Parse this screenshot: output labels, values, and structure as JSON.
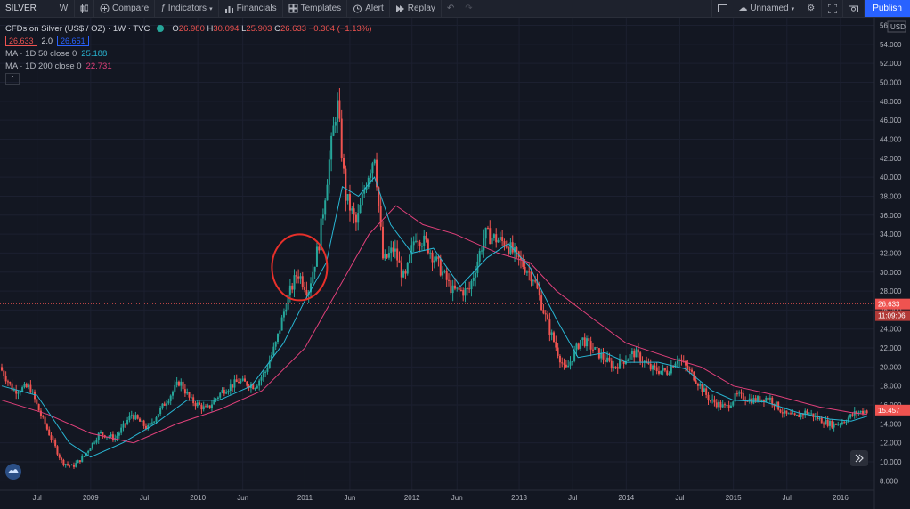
{
  "toolbar": {
    "symbol": "SILVER",
    "interval": "W",
    "compare": "Compare",
    "indicators": "Indicators",
    "financials": "Financials",
    "templates": "Templates",
    "alert": "Alert",
    "replay": "Replay",
    "layout_name": "Unnamed",
    "publish": "Publish"
  },
  "legend": {
    "title": "CFDs on Silver (US$ / OZ) · 1W · TVC",
    "open_label": "O",
    "open": "26.980",
    "high_label": "H",
    "high": "30.094",
    "low_label": "L",
    "low": "25.903",
    "close_label": "C",
    "close": "26.633",
    "change": "−0.304 (−1.13%)",
    "bid": "26.633",
    "spread": "2.0",
    "ask": "26.651",
    "ma50_label": "MA · 1D 50 close 0",
    "ma50_value": "25.188",
    "ma200_label": "MA · 1D 200 close 0",
    "ma200_value": "22.731"
  },
  "price_scale": {
    "currency": "USD",
    "last_price": "26.633",
    "countdown": "11:09:06",
    "ma_value_tag": "15.457"
  },
  "colors": {
    "up": "#26a69a",
    "down": "#ef5350",
    "ma50": "#29b6d3",
    "ma200": "#e0407a",
    "annotation": "#e8302a"
  },
  "chart_data": {
    "type": "candlestick",
    "ylim": [
      8,
      56
    ],
    "y_ticks": [
      "8.000",
      "10.000",
      "12.000",
      "14.000",
      "16.000",
      "18.000",
      "20.000",
      "22.000",
      "24.000",
      "26.000",
      "28.000",
      "30.000",
      "32.000",
      "34.000",
      "36.000",
      "38.000",
      "40.000",
      "42.000",
      "44.000",
      "46.000",
      "48.000",
      "50.000",
      "52.000",
      "54.000",
      "56.000"
    ],
    "x_ticks": [
      "Jul",
      "2009",
      "Jul",
      "2010",
      "Jun",
      "2011",
      "Jun",
      "2012",
      "Jun",
      "2013",
      "Jul",
      "2014",
      "Jul",
      "2015",
      "Jul",
      "2016"
    ],
    "x_tick_dates": [
      2008.5,
      2009.0,
      2009.5,
      2010.0,
      2010.42,
      2011.0,
      2011.42,
      2012.0,
      2012.42,
      2013.0,
      2013.5,
      2014.0,
      2014.5,
      2015.0,
      2015.5,
      2016.0
    ],
    "x_range": [
      2008.17,
      2016.25
    ],
    "price_points": [
      [
        2008.17,
        20.0
      ],
      [
        2008.3,
        17.5
      ],
      [
        2008.45,
        17.9
      ],
      [
        2008.55,
        15.0
      ],
      [
        2008.65,
        12.5
      ],
      [
        2008.75,
        10.0
      ],
      [
        2008.85,
        9.5
      ],
      [
        2008.95,
        10.5
      ],
      [
        2009.1,
        13.0
      ],
      [
        2009.25,
        12.5
      ],
      [
        2009.4,
        15.0
      ],
      [
        2009.55,
        13.5
      ],
      [
        2009.7,
        16.0
      ],
      [
        2009.85,
        18.5
      ],
      [
        2009.95,
        16.5
      ],
      [
        2010.1,
        15.5
      ],
      [
        2010.25,
        17.5
      ],
      [
        2010.4,
        18.5
      ],
      [
        2010.55,
        18.0
      ],
      [
        2010.65,
        19.5
      ],
      [
        2010.75,
        22.5
      ],
      [
        2010.85,
        27.0
      ],
      [
        2010.95,
        30.0
      ],
      [
        2011.05,
        28.0
      ],
      [
        2011.15,
        33.0
      ],
      [
        2011.25,
        42.0
      ],
      [
        2011.32,
        48.0
      ],
      [
        2011.4,
        38.0
      ],
      [
        2011.5,
        35.0
      ],
      [
        2011.6,
        40.0
      ],
      [
        2011.67,
        42.5
      ],
      [
        2011.75,
        31.0
      ],
      [
        2011.85,
        32.5
      ],
      [
        2011.95,
        29.0
      ],
      [
        2012.05,
        34.0
      ],
      [
        2012.15,
        33.0
      ],
      [
        2012.25,
        31.0
      ],
      [
        2012.4,
        28.0
      ],
      [
        2012.55,
        28.0
      ],
      [
        2012.7,
        34.0
      ],
      [
        2012.8,
        33.5
      ],
      [
        2012.9,
        33.0
      ],
      [
        2013.0,
        31.5
      ],
      [
        2013.15,
        29.5
      ],
      [
        2013.3,
        24.0
      ],
      [
        2013.45,
        19.5
      ],
      [
        2013.6,
        23.0
      ],
      [
        2013.75,
        21.5
      ],
      [
        2013.9,
        20.0
      ],
      [
        2014.1,
        21.5
      ],
      [
        2014.25,
        19.8
      ],
      [
        2014.4,
        19.5
      ],
      [
        2014.5,
        21.0
      ],
      [
        2014.65,
        19.0
      ],
      [
        2014.8,
        16.5
      ],
      [
        2014.95,
        15.7
      ],
      [
        2015.05,
        17.0
      ],
      [
        2015.2,
        16.5
      ],
      [
        2015.35,
        16.8
      ],
      [
        2015.5,
        15.0
      ],
      [
        2015.6,
        14.7
      ],
      [
        2015.7,
        15.3
      ],
      [
        2015.85,
        14.3
      ],
      [
        2015.95,
        13.9
      ],
      [
        2016.05,
        14.3
      ],
      [
        2016.15,
        15.1
      ],
      [
        2016.25,
        15.4
      ]
    ],
    "ma50_points": [
      [
        2008.17,
        18.0
      ],
      [
        2008.5,
        17.0
      ],
      [
        2008.8,
        12.0
      ],
      [
        2009.0,
        10.5
      ],
      [
        2009.3,
        12.0
      ],
      [
        2009.6,
        14.0
      ],
      [
        2009.9,
        16.5
      ],
      [
        2010.2,
        16.5
      ],
      [
        2010.5,
        18.0
      ],
      [
        2010.8,
        22.5
      ],
      [
        2011.0,
        27.0
      ],
      [
        2011.2,
        31.0
      ],
      [
        2011.35,
        39.0
      ],
      [
        2011.5,
        38.0
      ],
      [
        2011.65,
        40.0
      ],
      [
        2011.8,
        35.0
      ],
      [
        2012.0,
        32.0
      ],
      [
        2012.2,
        32.5
      ],
      [
        2012.45,
        28.5
      ],
      [
        2012.7,
        31.5
      ],
      [
        2012.9,
        33.0
      ],
      [
        2013.1,
        30.5
      ],
      [
        2013.35,
        25.0
      ],
      [
        2013.55,
        21.0
      ],
      [
        2013.8,
        21.5
      ],
      [
        2014.0,
        20.5
      ],
      [
        2014.3,
        20.5
      ],
      [
        2014.55,
        19.8
      ],
      [
        2014.8,
        17.5
      ],
      [
        2015.0,
        16.5
      ],
      [
        2015.3,
        16.3
      ],
      [
        2015.6,
        15.2
      ],
      [
        2015.9,
        14.5
      ],
      [
        2016.1,
        14.3
      ],
      [
        2016.25,
        14.8
      ]
    ],
    "ma200_points": [
      [
        2008.17,
        16.5
      ],
      [
        2008.6,
        15.0
      ],
      [
        2009.0,
        13.0
      ],
      [
        2009.4,
        12.0
      ],
      [
        2009.8,
        14.0
      ],
      [
        2010.2,
        15.5
      ],
      [
        2010.6,
        17.5
      ],
      [
        2011.0,
        22.0
      ],
      [
        2011.3,
        28.0
      ],
      [
        2011.6,
        34.0
      ],
      [
        2011.85,
        37.0
      ],
      [
        2012.1,
        35.0
      ],
      [
        2012.4,
        34.0
      ],
      [
        2012.8,
        32.0
      ],
      [
        2013.1,
        31.0
      ],
      [
        2013.35,
        28.0
      ],
      [
        2013.7,
        25.0
      ],
      [
        2014.0,
        22.5
      ],
      [
        2014.4,
        21.0
      ],
      [
        2014.7,
        20.0
      ],
      [
        2015.0,
        18.0
      ],
      [
        2015.4,
        17.0
      ],
      [
        2015.8,
        15.8
      ],
      [
        2016.1,
        15.2
      ],
      [
        2016.25,
        15.0
      ]
    ]
  }
}
